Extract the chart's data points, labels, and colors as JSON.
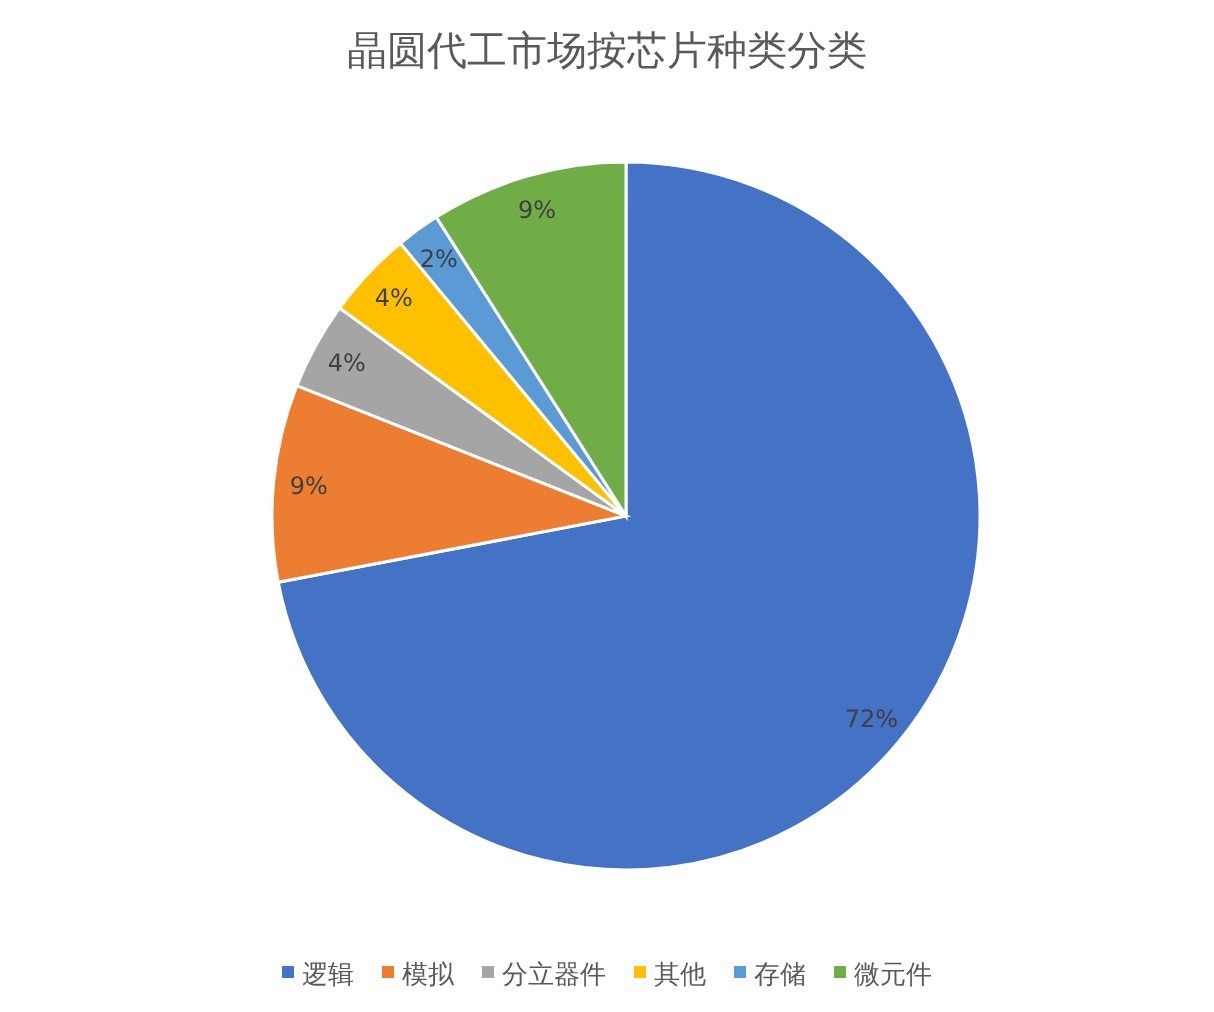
{
  "chart_data": {
    "type": "pie",
    "title": "晶圆代工市场按芯片种类分类",
    "categories": [
      "逻辑",
      "模拟",
      "分立器件",
      "其他",
      "存储",
      "微元件"
    ],
    "values": [
      72,
      9,
      4,
      4,
      2,
      9
    ],
    "value_labels": [
      "72%",
      "9%",
      "4%",
      "4%",
      "2%",
      "9%"
    ],
    "colors": [
      "#4472c4",
      "#ed7d31",
      "#a5a5a5",
      "#ffc000",
      "#5b9bd5",
      "#70ad47"
    ],
    "legend": "bottom"
  }
}
